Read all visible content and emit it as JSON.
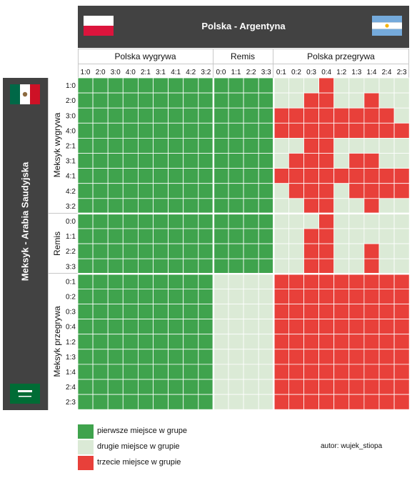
{
  "header": {
    "title": "Polska - Argentyna",
    "side_title": "Meksyk - Arabia Saudyjska"
  },
  "colors": {
    "first": "#3fa34d",
    "second": "#dbead6",
    "third": "#e8403a",
    "header_bg": "#424242"
  },
  "icons": {
    "poland": "poland-flag-icon",
    "argentina": "argentina-flag-icon",
    "mexico": "mexico-flag-icon",
    "saudi": "saudi-arabia-flag-icon"
  },
  "legend": [
    {
      "label": "pierwsze miejsce w grupe",
      "color": "#3fa34d"
    },
    {
      "label": "drugie miejsce w grupie",
      "color": "#dbead6"
    },
    {
      "label": "trzecie miejsce w grupie",
      "color": "#e8403a"
    }
  ],
  "author": "autor: wujek_stiopa",
  "chart_data": {
    "type": "heatmap",
    "title": "Polska - Argentyna",
    "x_groups": [
      {
        "label": "Polska wygrywa",
        "columns": [
          "1:0",
          "2:0",
          "3:0",
          "4:0",
          "2:1",
          "3:1",
          "4:1",
          "4:2",
          "3:2"
        ]
      },
      {
        "label": "Remis",
        "columns": [
          "0:0",
          "1:1",
          "2:2",
          "3:3"
        ]
      },
      {
        "label": "Polska przegrywa",
        "columns": [
          "0:1",
          "0:2",
          "0:3",
          "0:4",
          "1:2",
          "1:3",
          "1:4",
          "2:4",
          "2:3"
        ]
      }
    ],
    "y_label": "Meksyk - Arabia Saudyjska",
    "y_groups": [
      {
        "label": "Meksyk wygrywa",
        "rows": [
          "1:0",
          "2:0",
          "3:0",
          "4:0",
          "2:1",
          "3:1",
          "4:1",
          "4:2",
          "3:2"
        ]
      },
      {
        "label": "Remis",
        "rows": [
          "0:0",
          "1:1",
          "2:2",
          "3:3"
        ]
      },
      {
        "label": "Meksyk przegrywa",
        "rows": [
          "0:1",
          "0:2",
          "0:3",
          "0:4",
          "1:2",
          "1:3",
          "1:4",
          "2:4",
          "2:3"
        ]
      }
    ],
    "value_legend": {
      "1": "pierwsze miejsce w grupe",
      "2": "drugie miejsce w grupie",
      "3": "trzecie miejsce w grupie"
    },
    "values": [
      [
        1,
        1,
        1,
        1,
        1,
        1,
        1,
        1,
        1,
        1,
        1,
        1,
        1,
        2,
        2,
        2,
        3,
        2,
        2,
        2,
        2,
        2
      ],
      [
        1,
        1,
        1,
        1,
        1,
        1,
        1,
        1,
        1,
        1,
        1,
        1,
        1,
        2,
        2,
        3,
        3,
        2,
        2,
        3,
        2,
        2
      ],
      [
        1,
        1,
        1,
        1,
        1,
        1,
        1,
        1,
        1,
        1,
        1,
        1,
        1,
        3,
        3,
        3,
        3,
        3,
        3,
        3,
        3,
        2
      ],
      [
        1,
        1,
        1,
        1,
        1,
        1,
        1,
        1,
        1,
        1,
        1,
        1,
        1,
        3,
        3,
        3,
        3,
        3,
        3,
        3,
        3,
        3
      ],
      [
        1,
        1,
        1,
        1,
        1,
        1,
        1,
        1,
        1,
        1,
        1,
        1,
        1,
        2,
        2,
        3,
        3,
        2,
        2,
        2,
        2,
        2
      ],
      [
        1,
        1,
        1,
        1,
        1,
        1,
        1,
        1,
        1,
        1,
        1,
        1,
        1,
        2,
        3,
        3,
        3,
        2,
        3,
        3,
        2,
        2
      ],
      [
        1,
        1,
        1,
        1,
        1,
        1,
        1,
        1,
        1,
        1,
        1,
        1,
        1,
        3,
        3,
        3,
        3,
        3,
        3,
        3,
        3,
        3
      ],
      [
        1,
        1,
        1,
        1,
        1,
        1,
        1,
        1,
        1,
        1,
        1,
        1,
        1,
        2,
        3,
        3,
        3,
        2,
        3,
        3,
        3,
        3
      ],
      [
        1,
        1,
        1,
        1,
        1,
        1,
        1,
        1,
        1,
        1,
        1,
        1,
        1,
        2,
        2,
        3,
        3,
        2,
        2,
        3,
        2,
        2
      ],
      [
        1,
        1,
        1,
        1,
        1,
        1,
        1,
        1,
        1,
        1,
        1,
        1,
        1,
        2,
        2,
        2,
        3,
        2,
        2,
        2,
        2,
        2
      ],
      [
        1,
        1,
        1,
        1,
        1,
        1,
        1,
        1,
        1,
        1,
        1,
        1,
        1,
        2,
        2,
        3,
        3,
        2,
        2,
        2,
        2,
        2
      ],
      [
        1,
        1,
        1,
        1,
        1,
        1,
        1,
        1,
        1,
        1,
        1,
        1,
        1,
        2,
        2,
        3,
        3,
        2,
        2,
        3,
        2,
        2
      ],
      [
        1,
        1,
        1,
        1,
        1,
        1,
        1,
        1,
        1,
        1,
        1,
        1,
        1,
        2,
        2,
        3,
        3,
        2,
        2,
        3,
        2,
        2
      ],
      [
        1,
        1,
        1,
        1,
        1,
        1,
        1,
        1,
        1,
        2,
        2,
        2,
        2,
        3,
        3,
        3,
        3,
        3,
        3,
        3,
        3,
        3
      ],
      [
        1,
        1,
        1,
        1,
        1,
        1,
        1,
        1,
        1,
        2,
        2,
        2,
        2,
        3,
        3,
        3,
        3,
        3,
        3,
        3,
        3,
        3
      ],
      [
        1,
        1,
        1,
        1,
        1,
        1,
        1,
        1,
        1,
        2,
        2,
        2,
        2,
        3,
        3,
        3,
        3,
        3,
        3,
        3,
        3,
        3
      ],
      [
        1,
        1,
        1,
        1,
        1,
        1,
        1,
        1,
        1,
        2,
        2,
        2,
        2,
        3,
        3,
        3,
        3,
        3,
        3,
        3,
        3,
        3
      ],
      [
        1,
        1,
        1,
        1,
        1,
        1,
        1,
        1,
        1,
        2,
        2,
        2,
        2,
        3,
        3,
        3,
        3,
        3,
        3,
        3,
        3,
        3
      ],
      [
        1,
        1,
        1,
        1,
        1,
        1,
        1,
        1,
        1,
        2,
        2,
        2,
        2,
        3,
        3,
        3,
        3,
        3,
        3,
        3,
        3,
        3
      ],
      [
        1,
        1,
        1,
        1,
        1,
        1,
        1,
        1,
        1,
        2,
        2,
        2,
        2,
        3,
        3,
        3,
        3,
        3,
        3,
        3,
        3,
        3
      ],
      [
        1,
        1,
        1,
        1,
        1,
        1,
        1,
        1,
        1,
        2,
        2,
        2,
        2,
        3,
        3,
        3,
        3,
        3,
        3,
        3,
        3,
        3
      ],
      [
        1,
        1,
        1,
        1,
        1,
        1,
        1,
        1,
        1,
        2,
        2,
        2,
        2,
        3,
        3,
        3,
        3,
        3,
        3,
        3,
        3,
        3
      ]
    ]
  }
}
